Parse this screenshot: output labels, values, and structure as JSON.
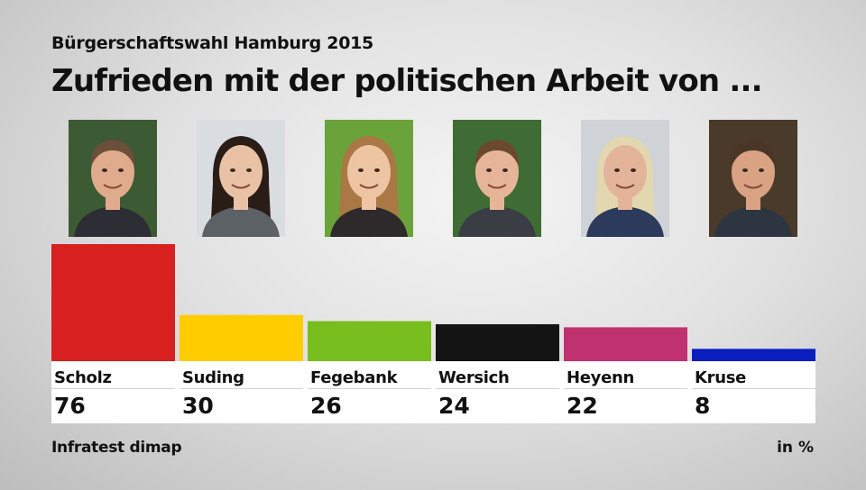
{
  "header": {
    "subtitle": "Bürgerschaftswahl Hamburg 2015",
    "title": "Zufrieden mit der politischen Arbeit von ..."
  },
  "chart_data": {
    "type": "bar",
    "title": "Zufrieden mit der politischen Arbeit von ...",
    "subtitle": "Bürgerschaftswahl Hamburg 2015",
    "categories": [
      "Scholz",
      "Suding",
      "Fegebank",
      "Wersich",
      "Heyenn",
      "Kruse"
    ],
    "values": [
      76,
      30,
      26,
      24,
      22,
      8
    ],
    "value_labels": [
      "76",
      "30",
      "26",
      "24",
      "22",
      "8"
    ],
    "colors": [
      "#d7201f",
      "#ffcc00",
      "#78be1e",
      "#141414",
      "#c0316f",
      "#0a1dbf"
    ],
    "unit": "in %",
    "ylim": [
      0,
      76
    ],
    "grid": false,
    "legend": "none"
  },
  "photos": [
    {
      "icon": "portrait-scholz",
      "bg": "#3c5a34",
      "skin": "#e0ab8c",
      "hair": "#6b4f3a",
      "clothes": "#2d2d35"
    },
    {
      "icon": "portrait-suding",
      "bg": "#d9dde2",
      "skin": "#e9c2a6",
      "hair": "#2a1d17",
      "clothes": "#5c6166"
    },
    {
      "icon": "portrait-fegebank",
      "bg": "#6aa33a",
      "skin": "#eec5a3",
      "hair": "#a97844",
      "clothes": "#2e2a2c"
    },
    {
      "icon": "portrait-wersich",
      "bg": "#3f6b34",
      "skin": "#e6b597",
      "hair": "#6a4a2e",
      "clothes": "#3a3d44"
    },
    {
      "icon": "portrait-heyenn",
      "bg": "#cfd2d6",
      "skin": "#e3b49a",
      "hair": "#e3d7b0",
      "clothes": "#2c3a5c"
    },
    {
      "icon": "portrait-kruse",
      "bg": "#4a3a2a",
      "skin": "#d9a283",
      "hair": "#4b3626",
      "clothes": "#2d3540"
    }
  ],
  "footer": {
    "source": "Infratest dimap",
    "unit": "in %"
  }
}
